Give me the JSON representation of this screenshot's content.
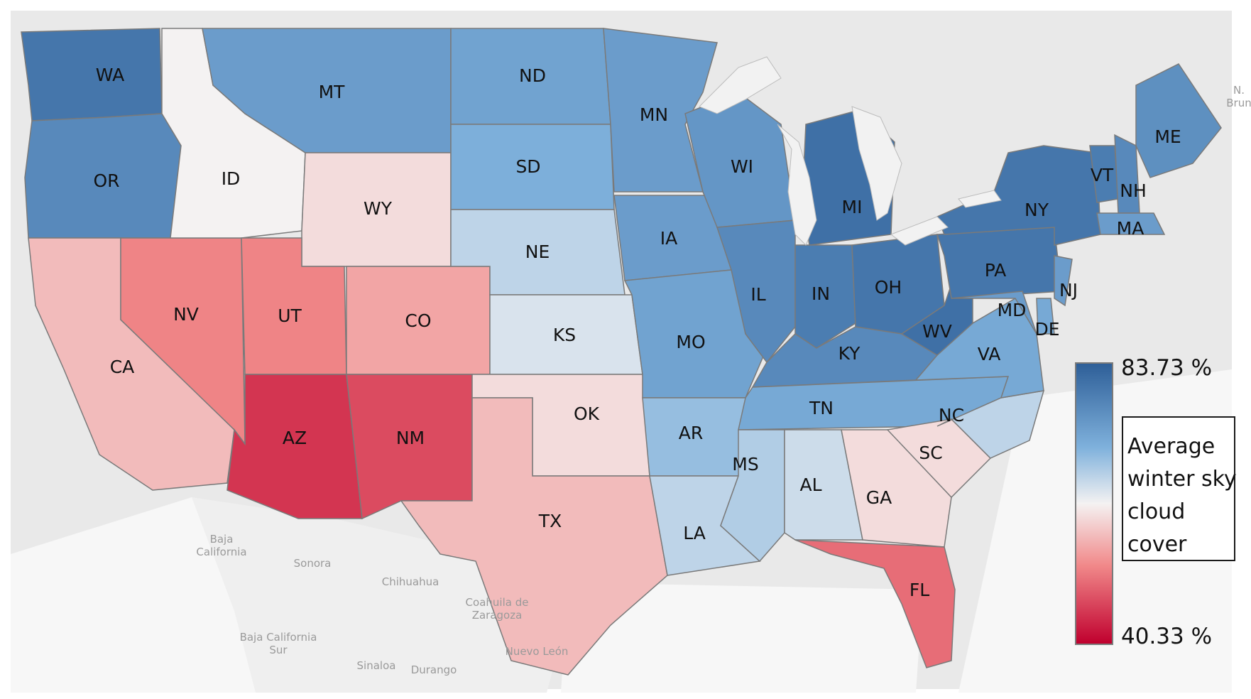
{
  "legend": {
    "max_label": "83.73 %",
    "min_label": "40.33 %",
    "title_lines": [
      "Average",
      "winter sky",
      "cloud",
      "cover"
    ],
    "max_value": 83.73,
    "min_value": 40.33,
    "colors": {
      "high": "#2e5f98",
      "mid_high": "#7fb1dc",
      "mid": "#f4f2f2",
      "mid_low": "#f1898a",
      "low": "#c0002e"
    }
  },
  "states": [
    {
      "abbr": "WA",
      "value": 80
    },
    {
      "abbr": "OR",
      "value": 77
    },
    {
      "abbr": "CA",
      "value": 57
    },
    {
      "abbr": "NV",
      "value": 52
    },
    {
      "abbr": "ID",
      "value": 62
    },
    {
      "abbr": "MT",
      "value": 74
    },
    {
      "abbr": "WY",
      "value": 60
    },
    {
      "abbr": "UT",
      "value": 52
    },
    {
      "abbr": "CO",
      "value": 55
    },
    {
      "abbr": "AZ",
      "value": 45
    },
    {
      "abbr": "NM",
      "value": 47
    },
    {
      "abbr": "ND",
      "value": 73
    },
    {
      "abbr": "SD",
      "value": 71
    },
    {
      "abbr": "NE",
      "value": 66
    },
    {
      "abbr": "KS",
      "value": 64
    },
    {
      "abbr": "OK",
      "value": 60
    },
    {
      "abbr": "TX",
      "value": 57
    },
    {
      "abbr": "MN",
      "value": 74
    },
    {
      "abbr": "IA",
      "value": 74
    },
    {
      "abbr": "MO",
      "value": 73
    },
    {
      "abbr": "AR",
      "value": 69
    },
    {
      "abbr": "LA",
      "value": 66
    },
    {
      "abbr": "WI",
      "value": 75
    },
    {
      "abbr": "IL",
      "value": 77
    },
    {
      "abbr": "MI",
      "value": 81
    },
    {
      "abbr": "IN",
      "value": 79
    },
    {
      "abbr": "OH",
      "value": 80
    },
    {
      "abbr": "KY",
      "value": 77
    },
    {
      "abbr": "TN",
      "value": 72
    },
    {
      "abbr": "MS",
      "value": 67
    },
    {
      "abbr": "AL",
      "value": 65
    },
    {
      "abbr": "GA",
      "value": 60
    },
    {
      "abbr": "FL",
      "value": 50
    },
    {
      "abbr": "SC",
      "value": 60
    },
    {
      "abbr": "NC",
      "value": 66
    },
    {
      "abbr": "VA",
      "value": 72
    },
    {
      "abbr": "WV",
      "value": 81
    },
    {
      "abbr": "PA",
      "value": 80
    },
    {
      "abbr": "NY",
      "value": 80
    },
    {
      "abbr": "MD",
      "value": 74
    },
    {
      "abbr": "DE",
      "value": 72
    },
    {
      "abbr": "NJ",
      "value": 74
    },
    {
      "abbr": "VT",
      "value": 79
    },
    {
      "abbr": "NH",
      "value": 77
    },
    {
      "abbr": "MA",
      "value": 74
    },
    {
      "abbr": "ME",
      "value": 76
    }
  ],
  "basemap_labels": [
    {
      "name": "Baja California",
      "lines": [
        "Baja",
        "California"
      ]
    },
    {
      "name": "Sonora",
      "lines": [
        "Sonora"
      ]
    },
    {
      "name": "Chihuahua",
      "lines": [
        "Chihuahua"
      ]
    },
    {
      "name": "Coahuila de Zaragoza",
      "lines": [
        "Coahuila de",
        "Zaragoza"
      ]
    },
    {
      "name": "Baja California Sur",
      "lines": [
        "Baja California",
        "Sur"
      ]
    },
    {
      "name": "Sinaloa",
      "lines": [
        "Sinaloa"
      ]
    },
    {
      "name": "Durango",
      "lines": [
        "Durango"
      ]
    },
    {
      "name": "Nuevo León",
      "lines": [
        "Nuevo León"
      ]
    },
    {
      "name": "Brun",
      "lines": [
        "N.",
        "Brun"
      ]
    }
  ]
}
